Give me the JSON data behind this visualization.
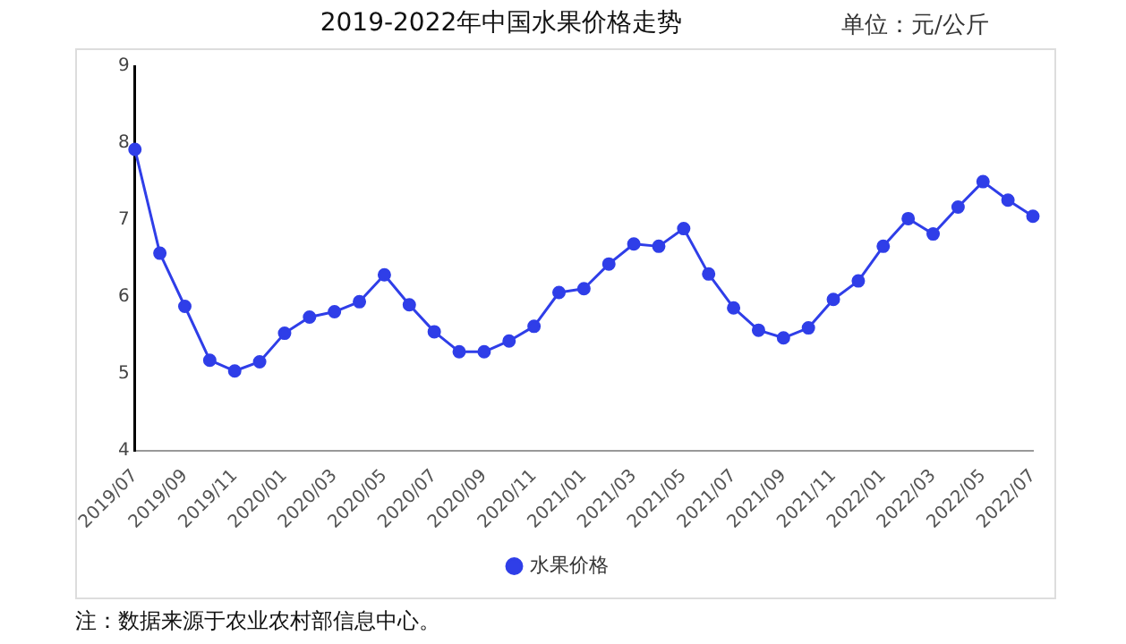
{
  "chart_data": {
    "type": "line",
    "title": "2019-2022年中国水果价格走势",
    "subtitle": "单位：元/公斤",
    "categories": [
      "2019/07",
      null,
      "2019/09",
      null,
      "2019/11",
      null,
      "2020/01",
      null,
      "2020/03",
      null,
      "2020/05",
      null,
      "2020/07",
      null,
      "2020/09",
      null,
      "2020/11",
      null,
      "2021/01",
      null,
      "2021/03",
      null,
      "2021/05",
      null,
      "2021/07",
      null,
      "2021/09",
      null,
      "2021/11",
      null,
      "2022/01",
      null,
      "2022/03",
      null,
      "2022/05",
      null,
      "2022/07"
    ],
    "series": [
      {
        "name": "水果价格",
        "color": "#2f3ee8",
        "values": [
          7.92,
          6.57,
          5.88,
          5.18,
          5.04,
          5.16,
          5.53,
          5.74,
          5.81,
          5.94,
          6.29,
          5.9,
          5.55,
          5.29,
          5.29,
          5.43,
          5.62,
          6.06,
          6.11,
          6.43,
          6.69,
          6.66,
          6.89,
          6.3,
          5.86,
          5.57,
          5.47,
          5.6,
          5.97,
          6.21,
          6.66,
          7.02,
          6.82,
          7.17,
          7.5,
          7.26,
          7.05
        ]
      }
    ],
    "ylim": [
      4,
      9
    ],
    "yticks": [
      4,
      5,
      6,
      7,
      8,
      9
    ],
    "grid": false,
    "legend": "bottom",
    "marker": "circle",
    "annotations": [
      "注：数据来源于农业农村部信息中心。"
    ]
  }
}
